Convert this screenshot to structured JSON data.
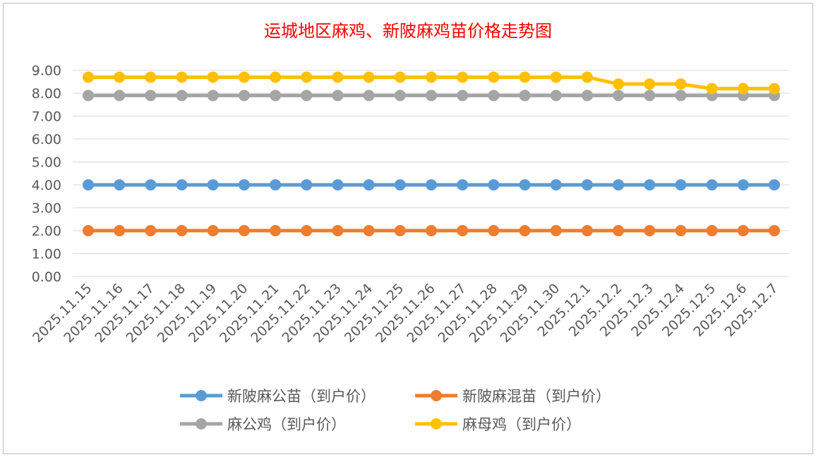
{
  "chart_data": {
    "type": "line",
    "title": "运城地区麻鸡、新陂麻鸡苗价格走势图",
    "xlabel": "",
    "ylabel": "",
    "ylim": [
      0,
      9
    ],
    "yticks": [
      "0.00",
      "1.00",
      "2.00",
      "3.00",
      "4.00",
      "5.00",
      "6.00",
      "7.00",
      "8.00",
      "9.00"
    ],
    "grid": true,
    "legend_position": "bottom",
    "categories": [
      "2025.11.15",
      "2025.11.16",
      "2025.11.17",
      "2025.11.18",
      "2025.11.19",
      "2025.11.20",
      "2025.11.21",
      "2025.11.22",
      "2025.11.23",
      "2025.11.24",
      "2025.11.25",
      "2025.11.26",
      "2025.11.27",
      "2025.11.28",
      "2025.11.29",
      "2025.11.30",
      "2025.12.1",
      "2025.12.2",
      "2025.12.3",
      "2025.12.4",
      "2025.12.5",
      "2025.12.6",
      "2025.12.7"
    ],
    "series": [
      {
        "name": "新陂麻公苗（到户价）",
        "color": "#5b9bd5",
        "values": [
          4,
          4,
          4,
          4,
          4,
          4,
          4,
          4,
          4,
          4,
          4,
          4,
          4,
          4,
          4,
          4,
          4,
          4,
          4,
          4,
          4,
          4,
          4
        ]
      },
      {
        "name": "新陂麻混苗（到户价）",
        "color": "#ed7d31",
        "values": [
          2,
          2,
          2,
          2,
          2,
          2,
          2,
          2,
          2,
          2,
          2,
          2,
          2,
          2,
          2,
          2,
          2,
          2,
          2,
          2,
          2,
          2,
          2
        ]
      },
      {
        "name": "麻公鸡（到户价）",
        "color": "#a5a5a5",
        "values": [
          7.9,
          7.9,
          7.9,
          7.9,
          7.9,
          7.9,
          7.9,
          7.9,
          7.9,
          7.9,
          7.9,
          7.9,
          7.9,
          7.9,
          7.9,
          7.9,
          7.9,
          7.9,
          7.9,
          7.9,
          7.9,
          7.9,
          7.9
        ]
      },
      {
        "name": "麻母鸡（到户价）",
        "color": "#ffc000",
        "values": [
          8.7,
          8.7,
          8.7,
          8.7,
          8.7,
          8.7,
          8.7,
          8.7,
          8.7,
          8.7,
          8.7,
          8.7,
          8.7,
          8.7,
          8.7,
          8.7,
          8.7,
          8.4,
          8.4,
          8.4,
          8.2,
          8.2,
          8.2
        ]
      }
    ]
  }
}
